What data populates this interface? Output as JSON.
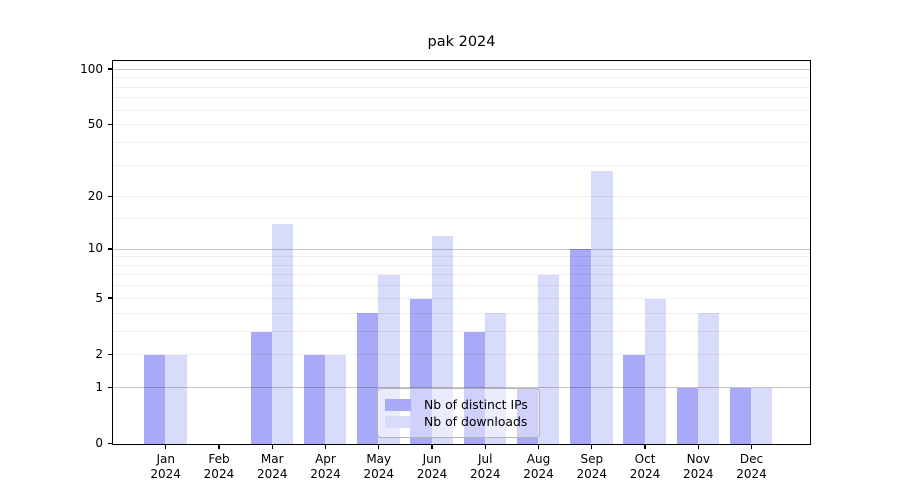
{
  "chart_data": {
    "type": "bar",
    "title": "pak 2024",
    "x_year": "2024",
    "categories": [
      "Jan",
      "Feb",
      "Mar",
      "Apr",
      "May",
      "Jun",
      "Jul",
      "Aug",
      "Sep",
      "Oct",
      "Nov",
      "Dec"
    ],
    "series": [
      {
        "name": "Nb of distinct IPs",
        "color": "#a8aaf7",
        "values": [
          2,
          0,
          3,
          2,
          4,
          5,
          3,
          1,
          10,
          2,
          1,
          1
        ]
      },
      {
        "name": "Nb of downloads",
        "color": "#d9dbfb",
        "values": [
          2,
          0,
          14,
          2,
          7,
          12,
          4,
          7,
          28,
          5,
          4,
          1
        ]
      }
    ],
    "y_axis": {
      "scale": "log1p",
      "min": 0,
      "max": 110,
      "tick_labels": [
        "0",
        "1",
        "2",
        "5",
        "10",
        "20",
        "50",
        "100"
      ],
      "tick_values": [
        0,
        1,
        2,
        5,
        10,
        20,
        50,
        100
      ],
      "major_gridlines": [
        1,
        10,
        100
      ],
      "minor_gridlines": [
        2,
        3,
        4,
        5,
        6,
        7,
        8,
        9,
        15,
        20,
        30,
        40,
        50,
        60,
        70,
        80,
        90
      ]
    },
    "legend": {
      "position": "lower center",
      "entries": [
        "Nb of distinct IPs",
        "Nb of downloads"
      ]
    },
    "grid": true
  },
  "colors": {
    "bar_distinct_ips": "#a8aaf7",
    "bar_downloads": "#d9dbfb",
    "grid_major": "#c7c7c7",
    "grid_minor": "#efefef",
    "axis": "#000000",
    "background": "#ffffff"
  }
}
